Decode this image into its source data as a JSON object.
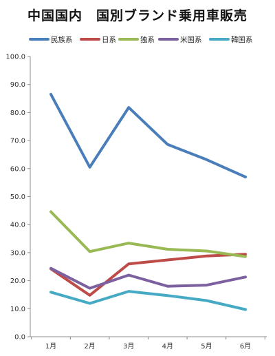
{
  "chart_data": {
    "type": "line",
    "title": "中国国内　国別ブランド乗用車販売",
    "xlabel": "",
    "ylabel": "",
    "categories": [
      "1月",
      "2月",
      "3月",
      "4月",
      "5月",
      "6月"
    ],
    "ylim": [
      0,
      100
    ],
    "yticks": [
      "0.0",
      "10.0",
      "20.0",
      "30.0",
      "40.0",
      "50.0",
      "60.0",
      "70.0",
      "80.0",
      "90.0",
      "100.0"
    ],
    "grid": false,
    "legend": "top",
    "series": [
      {
        "name": "民族系",
        "color": "#4a7ebb",
        "values": [
          86.5,
          60.5,
          81.8,
          68.6,
          63.2,
          57.0
        ]
      },
      {
        "name": "日系",
        "color": "#be4b48",
        "values": [
          24.2,
          14.8,
          26.0,
          27.4,
          28.8,
          29.4
        ]
      },
      {
        "name": "独系",
        "color": "#98b954",
        "values": [
          44.6,
          30.4,
          33.4,
          31.2,
          30.6,
          28.6
        ]
      },
      {
        "name": "米国系",
        "color": "#7d60a0",
        "values": [
          24.4,
          17.3,
          22.0,
          18.0,
          18.4,
          21.3
        ]
      },
      {
        "name": "韓国系",
        "color": "#46aac5",
        "values": [
          15.9,
          11.9,
          16.2,
          14.7,
          12.9,
          9.7
        ]
      }
    ]
  }
}
